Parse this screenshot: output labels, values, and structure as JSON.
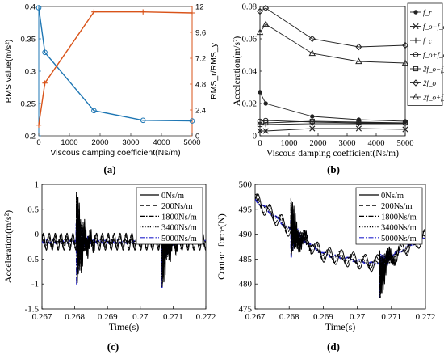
{
  "chart_data": [
    {
      "panel_label": "(a)",
      "type": "line",
      "xlabel": "Viscous damping coefficient(Ns/m)",
      "xlim": [
        0,
        5000
      ],
      "xticks": [
        0,
        1000,
        2000,
        3000,
        4000,
        5000
      ],
      "left_axis": {
        "label": "RMS value(m/s²)",
        "ylim": [
          0.2,
          0.4
        ],
        "ticks": [
          0.2,
          0.25,
          0.3,
          0.35,
          0.4
        ],
        "color": "#1f77b4"
      },
      "right_axis": {
        "label": "RMS_r/RMS_y",
        "ylim": [
          0,
          12
        ],
        "ticks": [
          0,
          2.4,
          4.8,
          7.2,
          9.6,
          12
        ],
        "color": "#d95319"
      },
      "series": [
        {
          "axis": "left",
          "color": "#1f77b4",
          "marker": "circle",
          "x": [
            0,
            200,
            1800,
            3400,
            5000
          ],
          "y": [
            0.398,
            0.329,
            0.239,
            0.224,
            0.223
          ]
        },
        {
          "axis": "right",
          "color": "#d95319",
          "marker": "plus",
          "x": [
            0,
            200,
            1800,
            3400,
            5000
          ],
          "y": [
            1.0,
            4.9,
            11.5,
            11.5,
            11.4
          ]
        }
      ],
      "grid": false
    },
    {
      "panel_label": "(b)",
      "type": "line",
      "xlabel": "Viscous damping coefficient(Ns/m)",
      "ylabel": "Acceleration(m/s²)",
      "xlim": [
        0,
        5000
      ],
      "ylim": [
        0,
        0.08
      ],
      "xticks": [
        0,
        1000,
        2000,
        3000,
        4000,
        5000
      ],
      "yticks": [
        0,
        0.02,
        0.04,
        0.06,
        0.08
      ],
      "legend_location": "right (outside)",
      "series": [
        {
          "name": "f_r",
          "marker": "dot",
          "x": [
            0,
            200,
            1800,
            3400,
            5000
          ],
          "y": [
            0.027,
            0.02,
            0.012,
            0.01,
            0.009
          ]
        },
        {
          "name": "f_o−f_c",
          "marker": "x",
          "x": [
            0,
            200,
            1800,
            3400,
            5000
          ],
          "y": [
            0.003,
            0.003,
            0.0045,
            0.0045,
            0.004
          ]
        },
        {
          "name": "f_c",
          "marker": "plus",
          "x": [
            0,
            200,
            1800,
            3400,
            5000
          ],
          "y": [
            0.007,
            0.007,
            0.0075,
            0.0075,
            0.0075
          ]
        },
        {
          "name": "f_o+f_c",
          "marker": "circle",
          "x": [
            0,
            200,
            1800,
            3400,
            5000
          ],
          "y": [
            0.009,
            0.0095,
            0.0085,
            0.008,
            0.008
          ]
        },
        {
          "name": "2f_o−f_c",
          "marker": "square",
          "x": [
            0,
            200,
            1800,
            3400,
            5000
          ],
          "y": [
            0.007,
            0.008,
            0.009,
            0.0085,
            0.008
          ]
        },
        {
          "name": "2f_o",
          "marker": "diamond",
          "x": [
            0,
            200,
            1800,
            3400,
            5000
          ],
          "y": [
            0.077,
            0.079,
            0.06,
            0.055,
            0.056
          ]
        },
        {
          "name": "2f_o+f_c",
          "marker": "triangle",
          "x": [
            0,
            200,
            1800,
            3400,
            5000
          ],
          "y": [
            0.064,
            0.069,
            0.051,
            0.046,
            0.045
          ]
        }
      ],
      "grid": false
    },
    {
      "panel_label": "(c)",
      "type": "line",
      "xlabel": "Time(s)",
      "ylabel": "Acceleration(m/s²)",
      "xlim": [
        0.267,
        0.272
      ],
      "ylim": [
        -1.5,
        1
      ],
      "xticks": [
        0.267,
        0.268,
        0.269,
        0.27,
        0.271,
        0.272
      ],
      "xticklabels": [
        "0.267",
        "0.268",
        "0.269",
        "0.27",
        "0.271",
        "0.272"
      ],
      "yticks": [
        -1.5,
        -1,
        -0.5,
        0,
        0.5,
        1
      ],
      "yticklabels": [
        "-1.5",
        "-1",
        "-0.5",
        "0",
        "0.5",
        "1"
      ],
      "legend_location": "top-right",
      "series": [
        {
          "name": "0Ns/m",
          "style": "solid",
          "color": "#000000"
        },
        {
          "name": "200Ns/m",
          "style": "dashed",
          "color": "#000000"
        },
        {
          "name": "1800Ns/m",
          "style": "dashdot",
          "color": "#000000"
        },
        {
          "name": "3400Ns/m",
          "style": "dotted",
          "color": "#000000"
        },
        {
          "name": "5000Ns/m",
          "style": "dashdot",
          "color": "#2222cc"
        }
      ],
      "signal": {
        "baseline": -0.15,
        "impact_times": [
          0.26805,
          0.27065
        ],
        "impact_peak": 0.85,
        "impact_trough": -1.0,
        "carrier_period": 0.00018
      },
      "grid": false
    },
    {
      "panel_label": "(d)",
      "type": "line",
      "xlabel": "Time(s)",
      "ylabel": "Contact force(N)",
      "xlim": [
        0.267,
        0.272
      ],
      "ylim": [
        475,
        500
      ],
      "xticks": [
        0.267,
        0.268,
        0.269,
        0.27,
        0.271,
        0.272
      ],
      "xticklabels": [
        "0.267",
        "0.268",
        "0.269",
        "0.27",
        "0.271",
        "0.272"
      ],
      "yticks": [
        475,
        480,
        485,
        490,
        495,
        500
      ],
      "legend_location": "top-right",
      "series": [
        {
          "name": "0Ns/m",
          "style": "solid",
          "color": "#000000"
        },
        {
          "name": "200Ns/m",
          "style": "dashed",
          "color": "#000000"
        },
        {
          "name": "1800Ns/m",
          "style": "dashdot",
          "color": "#000000"
        },
        {
          "name": "3400Ns/m",
          "style": "dotted",
          "color": "#000000"
        },
        {
          "name": "5000Ns/m",
          "style": "dashdot",
          "color": "#2222cc"
        }
      ],
      "signal": {
        "trend": [
          [
            0.267,
            497
          ],
          [
            0.268,
            491
          ],
          [
            0.269,
            486
          ],
          [
            0.2705,
            484
          ],
          [
            0.2711,
            486
          ],
          [
            0.272,
            489.5
          ]
        ],
        "impact_times": [
          0.26805,
          0.27065
        ],
        "impact_peak": 496,
        "impact_trough": 477
      },
      "grid": false
    }
  ]
}
